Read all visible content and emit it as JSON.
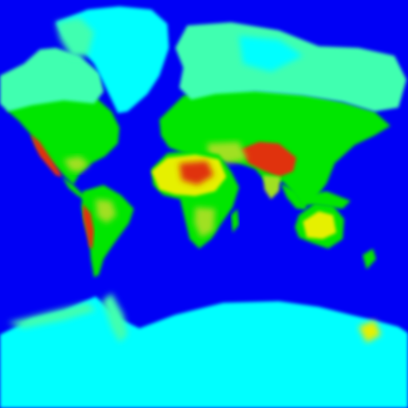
{
  "map": {
    "projection": "mercator-world",
    "colors": {
      "ocean": "#0000f5",
      "ice": "#00ffff",
      "cold": "#40ffb0",
      "temperate": "#00e600",
      "warm": "#a0e020",
      "arid": "#e6f000",
      "hot": "#e03010"
    }
  }
}
